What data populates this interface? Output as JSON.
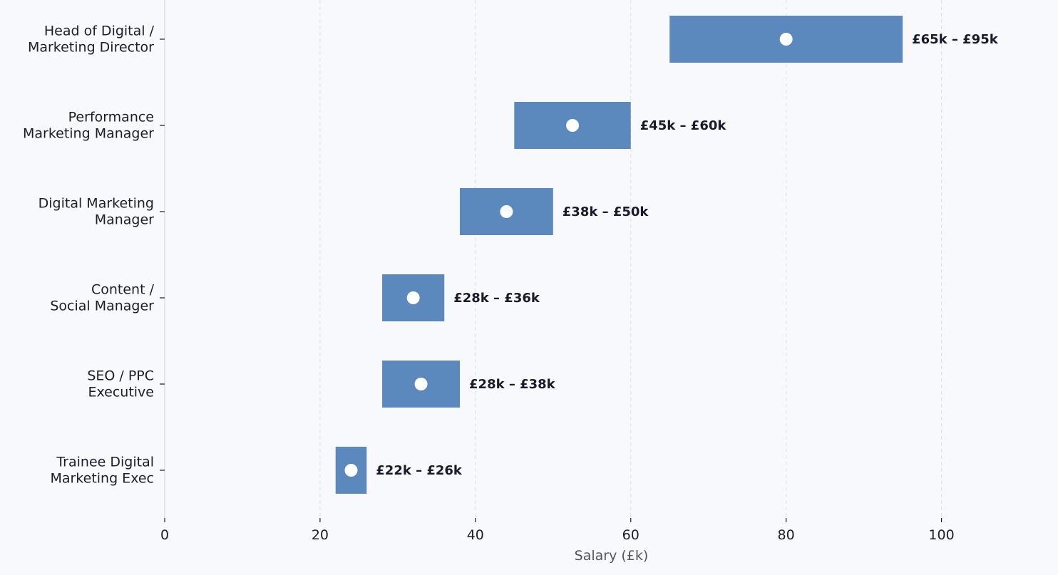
{
  "chart_data": {
    "type": "bar",
    "orientation": "horizontal",
    "title": "",
    "xlabel": "Salary (£k)",
    "ylabel": "",
    "xlim": [
      0,
      115
    ],
    "xticks": [
      0,
      20,
      40,
      60,
      80,
      100
    ],
    "grid": "vertical dashed",
    "bar_color": "#5b88bd",
    "marker_color": "#ffffff",
    "categories": [
      [
        "Head of Digital /",
        "Marketing Director"
      ],
      [
        "Performance",
        "Marketing Manager"
      ],
      [
        "Digital Marketing",
        "Manager"
      ],
      [
        "Content /",
        "Social Manager"
      ],
      [
        "SEO / PPC",
        "Executive"
      ],
      [
        "Trainee Digital",
        "Marketing Exec"
      ]
    ],
    "ranges": [
      {
        "low": 65,
        "high": 95,
        "mid": 80,
        "label": "£65k – £95k"
      },
      {
        "low": 45,
        "high": 60,
        "mid": 52.5,
        "label": "£45k – £60k"
      },
      {
        "low": 38,
        "high": 50,
        "mid": 44,
        "label": "£38k – £50k"
      },
      {
        "low": 28,
        "high": 36,
        "mid": 32,
        "label": "£28k – £36k"
      },
      {
        "low": 28,
        "high": 38,
        "mid": 33,
        "label": "£28k – £38k"
      },
      {
        "low": 22,
        "high": 26,
        "mid": 24,
        "label": "£22k – £26k"
      }
    ]
  }
}
